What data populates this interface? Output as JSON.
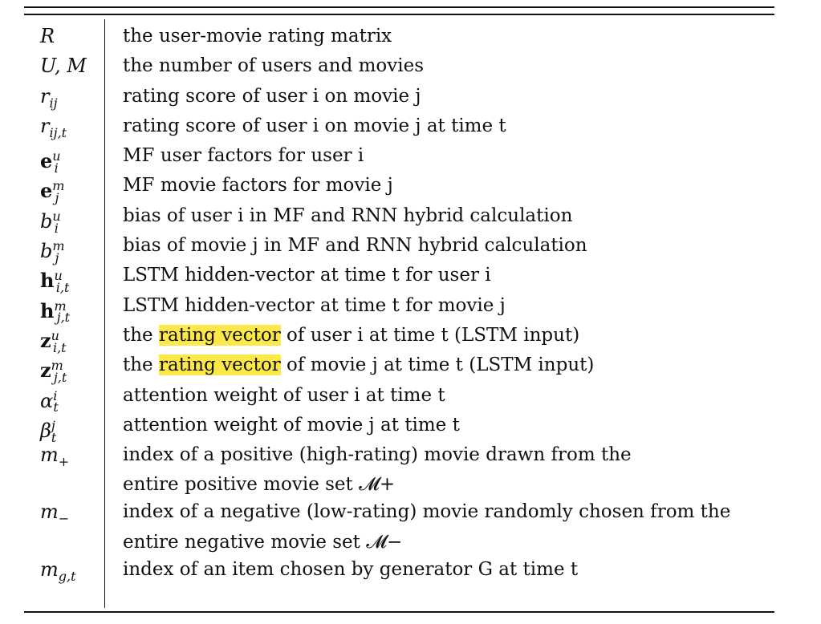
{
  "rows": [
    {
      "symbol": "R",
      "desc": "the user-movie rating matrix"
    },
    {
      "symbol": "U, M",
      "desc": "the number of users and movies"
    },
    {
      "symbol": "r_ij",
      "desc": "rating score of user i on movie j"
    },
    {
      "symbol": "r_ij,t",
      "desc": "rating score of user i on movie j at time t"
    },
    {
      "symbol": "e_i^u",
      "desc": "MF user factors for user i"
    },
    {
      "symbol": "e_j^m",
      "desc": "MF movie factors for movie j"
    },
    {
      "symbol": "b_i^u",
      "desc": "bias of user i in MF and RNN hybrid calculation"
    },
    {
      "symbol": "b_j^m",
      "desc": "bias of movie j in MF and RNN hybrid calculation"
    },
    {
      "symbol": "h_i,t^u",
      "desc": "LSTM hidden-vector at time t for user i"
    },
    {
      "symbol": "h_j,t^m",
      "desc": "LSTM hidden-vector at time t for movie j"
    },
    {
      "symbol": "z_i,t^u",
      "desc_pre": "the ",
      "desc_hl": "rating vector",
      "desc_post": " of user i at time t (LSTM input)"
    },
    {
      "symbol": "z_j,t^m",
      "desc_pre": "the ",
      "desc_hl": "rating vector",
      "desc_post": " of movie j at time t (LSTM input)"
    },
    {
      "symbol": "α_t^i",
      "desc": "attention weight of user i at time t"
    },
    {
      "symbol": "β_t^j",
      "desc": "attention weight of movie j at time t"
    },
    {
      "symbol": "m+",
      "desc": "index of a positive (high-rating) movie drawn from the",
      "desc2": "entire positive movie set 𝓜+"
    },
    {
      "symbol": "m−",
      "desc": "index of a negative (low-rating) movie randomly chosen from the",
      "desc2": "entire negative movie set 𝓜−"
    },
    {
      "symbol": "m_g,t",
      "desc": "index of an item chosen by generator G at time t"
    }
  ],
  "highlight_color": "#fde84a"
}
